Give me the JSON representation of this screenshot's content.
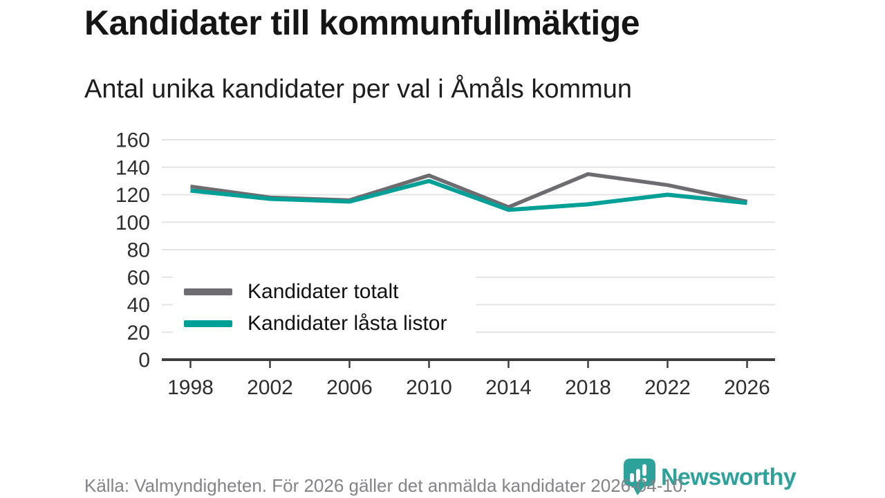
{
  "header": {
    "title": "Kandidater till kommunfullmäktige",
    "subtitle": "Antal unika kandidater per val i Åmåls kommun"
  },
  "chart_data": {
    "type": "line",
    "x": [
      "1998",
      "2002",
      "2006",
      "2010",
      "2014",
      "2018",
      "2022",
      "2026"
    ],
    "series": [
      {
        "name": "Kandidater totalt",
        "color": "#6e6c70",
        "values": [
          126,
          118,
          116,
          134,
          111,
          135,
          127,
          115
        ]
      },
      {
        "name": "Kandidater låsta listor",
        "color": "#00a096",
        "values": [
          123,
          117,
          115,
          130,
          109,
          113,
          120,
          114
        ]
      }
    ],
    "title": "Kandidater till kommunfullmäktige",
    "subtitle": "Antal unika kandidater per val i Åmåls kommun",
    "xlabel": "",
    "ylabel": "",
    "ylim": [
      0,
      160
    ],
    "ytick_step": 20,
    "yticks": [
      0,
      20,
      40,
      60,
      80,
      100,
      120,
      140,
      160
    ],
    "grid": "horizontal-only",
    "legend_position": "inside-middle-left"
  },
  "footer": {
    "source_note": "Källa: Valmyndigheten. För 2026 gäller det anmälda kandidater 2026-04-10.",
    "brand": {
      "name": "Newsworthy",
      "color": "#2da29b",
      "icon": "newsworthy-pin-barchart-icon"
    }
  },
  "colors": {
    "accent_teal": "#00a096",
    "series_gray": "#6e6c70",
    "gridline": "#e4e4e4",
    "axis": "#3d3d3d",
    "tick_label": "#2e2e2e",
    "title_text": "#151515",
    "footer_text": "#83838a",
    "background": "#ffffff"
  }
}
